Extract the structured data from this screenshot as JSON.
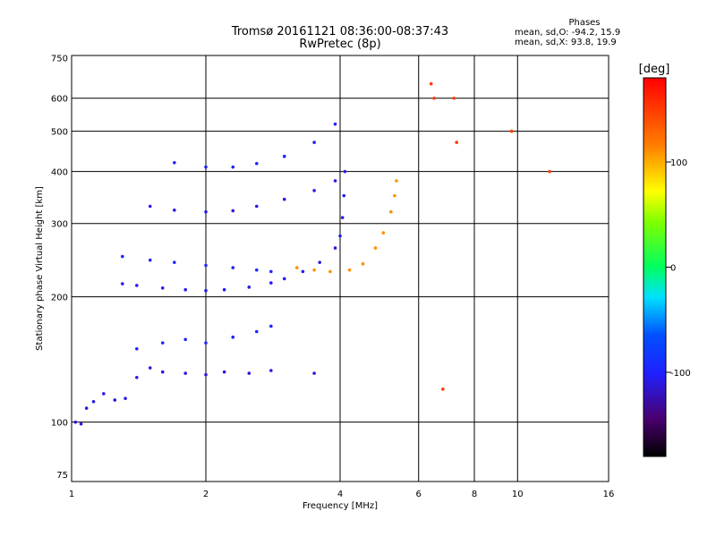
{
  "header": {
    "title": "Tromsø 20161121 08:36:00-08:37:43",
    "subtitle": "RwPretec (8p)",
    "stats_title": "Phases",
    "stats_o": "mean, sd,O: -94.2, 15.9",
    "stats_x": "mean, sd,X: 93.8, 19.9"
  },
  "chart_data": {
    "type": "scatter",
    "xlabel": "Frequency [MHz]",
    "ylabel": "Stationary phase Virtual Height [km]",
    "x_scale": "log",
    "y_scale": "log",
    "xlim": [
      1,
      16
    ],
    "ylim": [
      72,
      760
    ],
    "x_ticks": [
      1,
      2,
      4,
      6,
      8,
      10,
      16
    ],
    "x_tick_labels": [
      "1",
      "2",
      "4",
      "6",
      "8",
      "10",
      "16"
    ],
    "y_ticks": [
      75,
      100,
      200,
      300,
      400,
      500,
      600,
      750
    ],
    "y_tick_labels": [
      "75",
      "100",
      "200",
      "300",
      "400",
      "500",
      "600",
      "750"
    ],
    "grid": true,
    "colorbar": {
      "label": "[deg]",
      "range": [
        -180,
        180
      ],
      "ticks": [
        100,
        0,
        -100
      ],
      "tick_labels": [
        "100",
        "0",
        "-100"
      ],
      "colormap": "rainbow"
    },
    "series": [
      {
        "phase_deg": -110,
        "points": [
          [
            1.02,
            100
          ],
          [
            1.05,
            99
          ],
          [
            1.08,
            108
          ],
          [
            1.12,
            112
          ],
          [
            1.18,
            117
          ],
          [
            1.25,
            113
          ],
          [
            1.32,
            114
          ],
          [
            1.4,
            128
          ],
          [
            1.5,
            135
          ],
          [
            1.6,
            132
          ],
          [
            1.8,
            131
          ],
          [
            2.0,
            130
          ],
          [
            2.2,
            132
          ],
          [
            2.5,
            131
          ],
          [
            2.8,
            133
          ],
          [
            3.5,
            131
          ]
        ]
      },
      {
        "phase_deg": -100,
        "points": [
          [
            1.4,
            150
          ],
          [
            1.6,
            155
          ],
          [
            1.8,
            158
          ],
          [
            2.0,
            155
          ],
          [
            2.3,
            160
          ],
          [
            2.6,
            165
          ],
          [
            2.8,
            170
          ]
        ]
      },
      {
        "phase_deg": -105,
        "points": [
          [
            1.3,
            215
          ],
          [
            1.4,
            213
          ],
          [
            1.6,
            210
          ],
          [
            1.8,
            208
          ],
          [
            2.0,
            207
          ],
          [
            2.2,
            208
          ],
          [
            2.5,
            211
          ],
          [
            2.8,
            216
          ],
          [
            3.0,
            221
          ],
          [
            3.3,
            230
          ],
          [
            3.6,
            242
          ],
          [
            3.9,
            262
          ],
          [
            4.0,
            280
          ],
          [
            4.05,
            310
          ],
          [
            4.08,
            350
          ],
          [
            4.1,
            400
          ]
        ]
      },
      {
        "phase_deg": -95,
        "points": [
          [
            1.3,
            250
          ],
          [
            1.5,
            245
          ],
          [
            1.7,
            242
          ],
          [
            2.0,
            238
          ],
          [
            2.3,
            235
          ],
          [
            2.6,
            232
          ],
          [
            2.8,
            230
          ]
        ]
      },
      {
        "phase_deg": -108,
        "points": [
          [
            1.5,
            330
          ],
          [
            1.7,
            323
          ],
          [
            2.0,
            320
          ],
          [
            2.3,
            322
          ],
          [
            2.6,
            330
          ],
          [
            3.0,
            343
          ],
          [
            3.5,
            360
          ],
          [
            3.9,
            380
          ]
        ]
      },
      {
        "phase_deg": -102,
        "points": [
          [
            1.7,
            420
          ],
          [
            2.0,
            410
          ],
          [
            2.3,
            410
          ],
          [
            2.6,
            418
          ],
          [
            3.0,
            435
          ],
          [
            3.5,
            470
          ],
          [
            3.9,
            520
          ]
        ]
      },
      {
        "phase_deg": 110,
        "points": [
          [
            3.2,
            235
          ],
          [
            3.5,
            232
          ],
          [
            3.8,
            230
          ],
          [
            4.2,
            232
          ],
          [
            4.5,
            240
          ],
          [
            4.8,
            262
          ],
          [
            5.0,
            285
          ],
          [
            5.2,
            320
          ],
          [
            5.3,
            350
          ],
          [
            5.35,
            380
          ]
        ]
      },
      {
        "phase_deg": 150,
        "points": [
          [
            6.4,
            650
          ],
          [
            6.5,
            600
          ],
          [
            7.2,
            600
          ],
          [
            7.3,
            470
          ],
          [
            9.7,
            500
          ],
          [
            11.8,
            400
          ],
          [
            6.8,
            120
          ]
        ]
      }
    ]
  }
}
